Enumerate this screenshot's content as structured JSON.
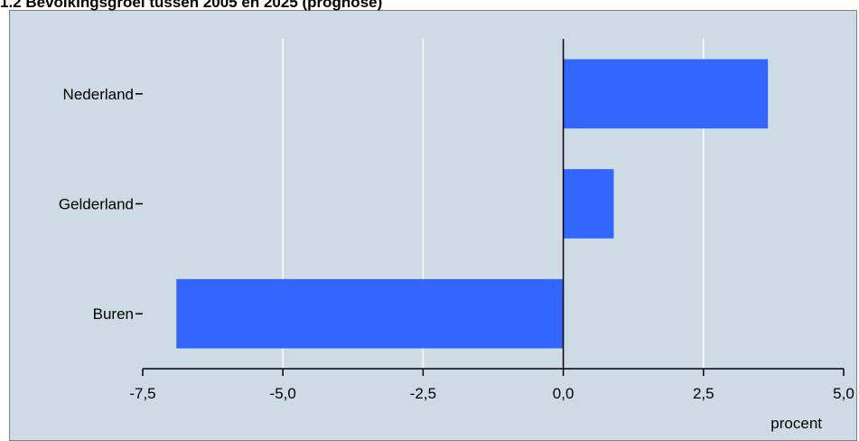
{
  "chart_data": {
    "type": "bar",
    "orientation": "horizontal",
    "title": "1.2  Bevolkingsgroei tussen 2005 en 2025 (prognose)",
    "categories": [
      "Nederland",
      "Gelderland",
      "Buren"
    ],
    "values": [
      3.65,
      0.9,
      -6.9
    ],
    "xlabel": "procent",
    "xlim": [
      -7.5,
      5.0
    ],
    "xticks": [
      -7.5,
      -5.0,
      -2.5,
      0.0,
      2.5,
      5.0
    ],
    "xtick_labels": [
      "-7,5",
      "-5,0",
      "-2,5",
      "0,0",
      "2,5",
      "5,0"
    ],
    "grid": true,
    "legend": "none",
    "colors": {
      "bar": "#3366ff",
      "plot_background": "#cddce4",
      "gridline": "#ffffff",
      "axis": "#000000"
    }
  }
}
